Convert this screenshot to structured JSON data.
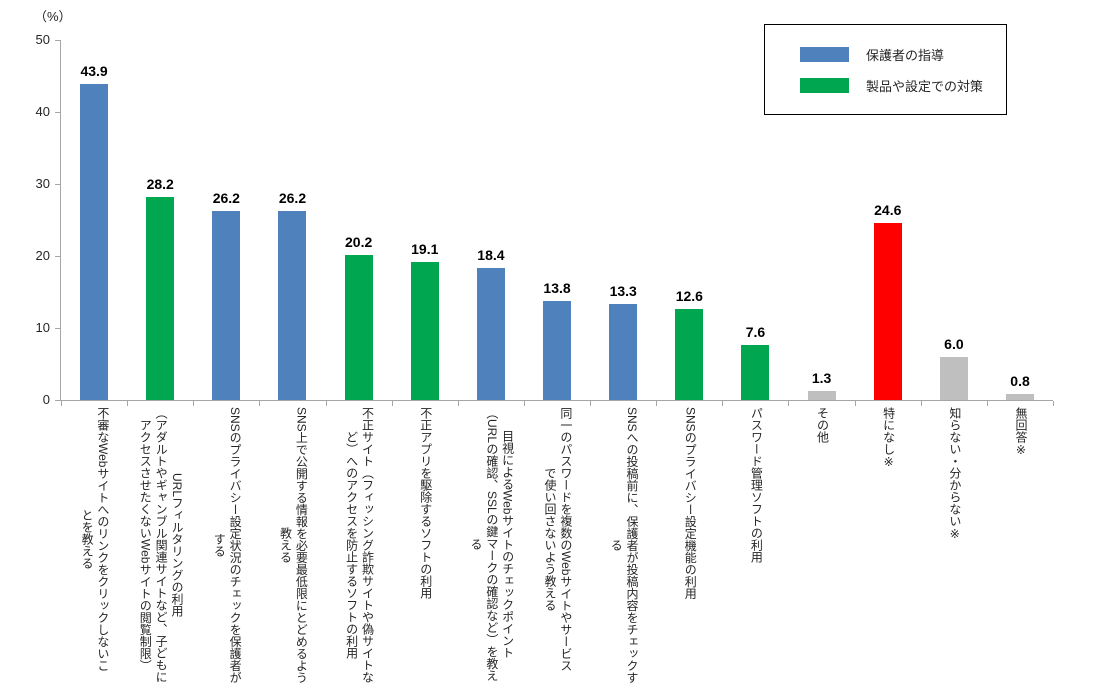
{
  "chart_data": {
    "type": "bar",
    "unit_label": "（%）",
    "ylim": [
      0,
      50
    ],
    "y_ticks": [
      0,
      10,
      20,
      30,
      40,
      50
    ],
    "grid": false,
    "legend": {
      "position": "top-right",
      "entries": [
        {
          "label": "保護者の指導",
          "color": "#4F81BD"
        },
        {
          "label": "製品や設定での対策",
          "color": "#00A650"
        }
      ]
    },
    "items": [
      {
        "label": "不審なWebサイトへのリンクをクリックしないことを教える",
        "label_lines": [
          "不審なWebサイトへのリンクをクリックしないこ",
          "とを教える"
        ],
        "value": 43.9,
        "value_label": "43.9",
        "group": "保護者の指導",
        "color": "#4F81BD"
      },
      {
        "label": "URLフィルタリングの利用（アダルトやギャンブル関連サイトなど、子どもにアクセスさせたくないWebサイトの閲覧制限）",
        "label_lines": [
          "URLフィルタリングの利用",
          "（アダルトやギャンブル関連サイトなど、子どもに",
          "アクセスさせたくないWebサイトの閲覧制限）"
        ],
        "value": 28.2,
        "value_label": "28.2",
        "group": "製品や設定での対策",
        "color": "#00A650"
      },
      {
        "label": "SNSのプライバシー設定状況のチェックを保護者がする",
        "label_lines": [
          "SNSのプライバシー設定状況のチェックを保護者が",
          "する"
        ],
        "value": 26.2,
        "value_label": "26.2",
        "group": "保護者の指導",
        "color": "#4F81BD"
      },
      {
        "label": "SNS上で公開する情報を必要最低限にとどめるよう教える",
        "label_lines": [
          "SNS上で公開する情報を必要最低限にとどめるよう",
          "教える"
        ],
        "value": 26.2,
        "value_label": "26.2",
        "group": "保護者の指導",
        "color": "#4F81BD"
      },
      {
        "label": "不正サイト（フィッシング詐欺サイトや偽サイトなど）へのアクセスを防止するソフトの利用",
        "label_lines": [
          "不正サイト（フィッシング詐欺サイトや偽サイトな",
          "ど）へのアクセスを防止するソフトの利用"
        ],
        "value": 20.2,
        "value_label": "20.2",
        "group": "製品や設定での対策",
        "color": "#00A650"
      },
      {
        "label": "不正アプリを駆除するソフトの利用",
        "label_lines": [
          "不正アプリを駆除するソフトの利用"
        ],
        "value": 19.1,
        "value_label": "19.1",
        "group": "製品や設定での対策",
        "color": "#00A650"
      },
      {
        "label": "目視によるWebサイトのチェックポイント（URLの確認、SSLの鍵マークの確認など）を教える",
        "label_lines": [
          "目視によるWebサイトのチェックポイント",
          "（URLの確認、SSLの鍵マークの確認など）を教え",
          "る"
        ],
        "value": 18.4,
        "value_label": "18.4",
        "group": "保護者の指導",
        "color": "#4F81BD"
      },
      {
        "label": "同一のパスワードを複数のWebサイトやサービスで使い回さないよう教える",
        "label_lines": [
          "同一のパスワードを複数のWebサイトやサービス",
          "で使い回さないよう教える"
        ],
        "value": 13.8,
        "value_label": "13.8",
        "group": "保護者の指導",
        "color": "#4F81BD"
      },
      {
        "label": "SNSへの投稿前に、保護者が投稿内容をチェックする",
        "label_lines": [
          "SNSへの投稿前に、保護者が投稿内容をチェックす",
          "る"
        ],
        "value": 13.3,
        "value_label": "13.3",
        "group": "保護者の指導",
        "color": "#4F81BD"
      },
      {
        "label": "SNSのプライバシー設定機能の利用",
        "label_lines": [
          "SNSのプライバシー設定機能の利用"
        ],
        "value": 12.6,
        "value_label": "12.6",
        "group": "製品や設定での対策",
        "color": "#00A650"
      },
      {
        "label": "パスワード管理ソフトの利用",
        "label_lines": [
          "パスワード管理ソフトの利用"
        ],
        "value": 7.6,
        "value_label": "7.6",
        "group": "製品や設定での対策",
        "color": "#00A650"
      },
      {
        "label": "その他",
        "label_lines": [
          "その他"
        ],
        "value": 1.3,
        "value_label": "1.3",
        "group": null,
        "color": "#BFBFBF"
      },
      {
        "label": "特になし※",
        "label_lines": [
          "特になし※"
        ],
        "value": 24.6,
        "value_label": "24.6",
        "group": null,
        "color": "#FF0000"
      },
      {
        "label": "知らない・分からない※",
        "label_lines": [
          "知らない・分からない※"
        ],
        "value": 6.0,
        "value_label": "6.0",
        "group": null,
        "color": "#BFBFBF"
      },
      {
        "label": "無回答※",
        "label_lines": [
          "無回答※"
        ],
        "value": 0.8,
        "value_label": "0.8",
        "group": null,
        "color": "#BFBFBF"
      }
    ]
  },
  "colors": {
    "bar_blue": "#4F81BD",
    "bar_green": "#00A650",
    "bar_red": "#FF0000",
    "bar_gray": "#BFBFBF",
    "axis_line": "#A6A6A6",
    "text": "#262626"
  }
}
